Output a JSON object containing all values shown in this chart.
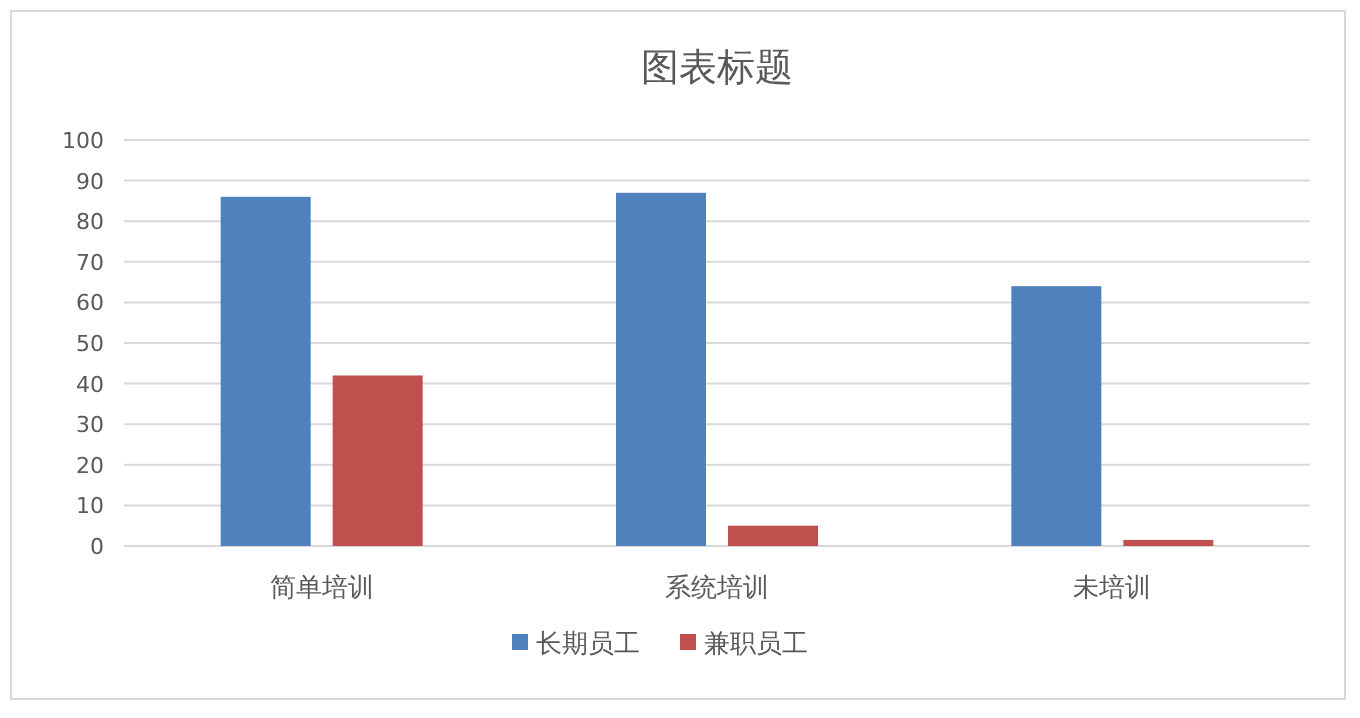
{
  "chart_data": {
    "type": "bar",
    "title": "图表标题",
    "categories": [
      "简单培训",
      "系统培训",
      "未培训"
    ],
    "series": [
      {
        "name": "长期员工",
        "color": "#4f81bd",
        "values": [
          86,
          87,
          64
        ]
      },
      {
        "name": "兼职员工",
        "color": "#c0504d",
        "values": [
          42,
          5,
          1.5
        ]
      }
    ],
    "ylim": [
      0,
      100
    ],
    "yticks": [
      0,
      10,
      20,
      30,
      40,
      50,
      60,
      70,
      80,
      90,
      100
    ],
    "grid": "y",
    "legend": "bottom"
  }
}
